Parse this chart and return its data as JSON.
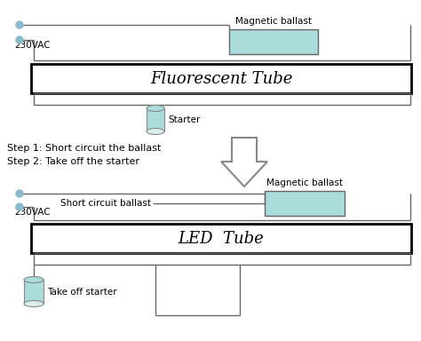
{
  "bg_color": "#ffffff",
  "line_color": "#666666",
  "ballast_fill": "#aadcdc",
  "ballast_edge": "#666666",
  "tube_fill": "#ffffff",
  "tube_edge": "#000000",
  "starter_fill": "#aadcdc",
  "starter_edge": "#888888",
  "arrow_fill": "#ffffff",
  "arrow_edge": "#888888",
  "dot_color": "#88bbcc",
  "text_color": "#000000",
  "fluor_tube_label": "Fluorescent Tube",
  "led_tube_label": "LED  Tube",
  "mag_ballast_label1": "Magnetic ballast",
  "mag_ballast_label2": "Magnetic ballast",
  "short_circuit_label": "Short circuit ballast",
  "starter_label1": "Starter",
  "starter_label2": "Take off starter",
  "vac_label1": "230VAC",
  "vac_label2": "230VAC",
  "step1": "Step 1: Short circuit the ballast",
  "step2": "Step 2: Take off the starter"
}
